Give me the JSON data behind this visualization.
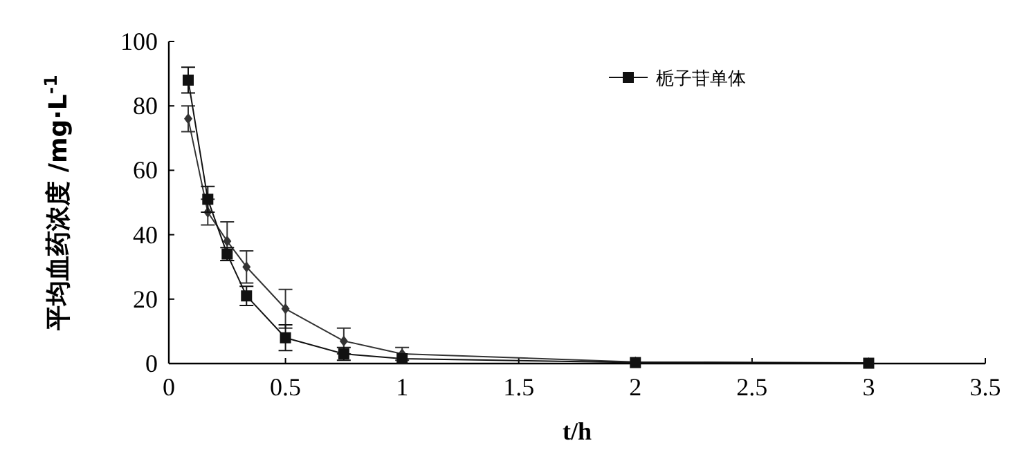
{
  "chart_data": {
    "type": "line",
    "x": [
      0.083,
      0.167,
      0.25,
      0.333,
      0.5,
      0.75,
      1,
      2,
      3
    ],
    "series": [
      {
        "color": "#333333",
        "marker": "diamond",
        "values": [
          76,
          47,
          38,
          30,
          17,
          7,
          3,
          0.5,
          0.2
        ],
        "errors": [
          4,
          4,
          6,
          5,
          6,
          4,
          2,
          null,
          null
        ]
      },
      {
        "name": "栀子苷单体",
        "color": "#111111",
        "marker": "square",
        "values": [
          88,
          51,
          34,
          21,
          8,
          3,
          1.5,
          0.3,
          0.1
        ],
        "errors": [
          4,
          4,
          2,
          3,
          4,
          2,
          null,
          null,
          null
        ]
      }
    ],
    "xlabel": "t/h",
    "ylabel": "平均血药浓度 /mg·L$^{-1}$",
    "xlim": [
      0,
      3.5
    ],
    "xticks": [
      0,
      0.5,
      1,
      1.5,
      2,
      2.5,
      3,
      3.5
    ],
    "ylim": [
      0,
      100
    ],
    "yticks": [
      0,
      20,
      40,
      60,
      80,
      100
    ],
    "grid": false,
    "legend": "top",
    "line_style": "solid"
  }
}
